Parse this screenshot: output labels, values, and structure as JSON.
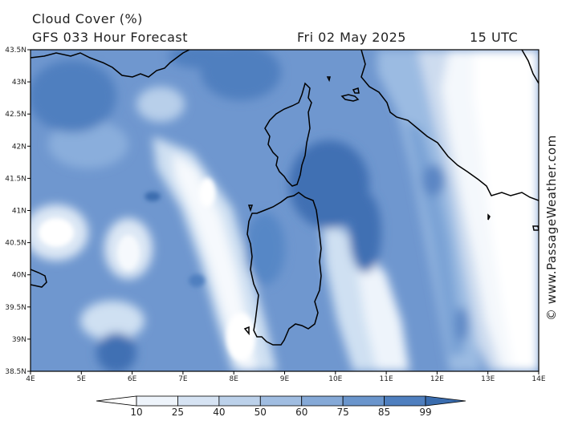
{
  "header": {
    "title": "Cloud Cover (%)",
    "subtitle": "GFS 033 Hour Forecast",
    "date": "Fri 02 May 2025",
    "time": "15 UTC"
  },
  "credit": "© www.PassageWeather.com",
  "map": {
    "lat_labels": [
      "43.5N",
      "43N",
      "42.5N",
      "42N",
      "41.5N",
      "41N",
      "40.5N",
      "40N",
      "39.5N",
      "39N",
      "38.5N"
    ],
    "lon_labels": [
      "4E",
      "5E",
      "6E",
      "7E",
      "8E",
      "9E",
      "10E",
      "11E",
      "12E",
      "13E",
      "14E"
    ]
  },
  "colorbar": {
    "labels": [
      "10",
      "25",
      "40",
      "50",
      "60",
      "75",
      "85",
      "99"
    ],
    "colors": [
      "#ffffff",
      "#eef4fb",
      "#d6e3f3",
      "#bcd1ea",
      "#a0bde1",
      "#85a9d7",
      "#6a95cc",
      "#4f7fbf",
      "#3a6cae"
    ]
  }
}
